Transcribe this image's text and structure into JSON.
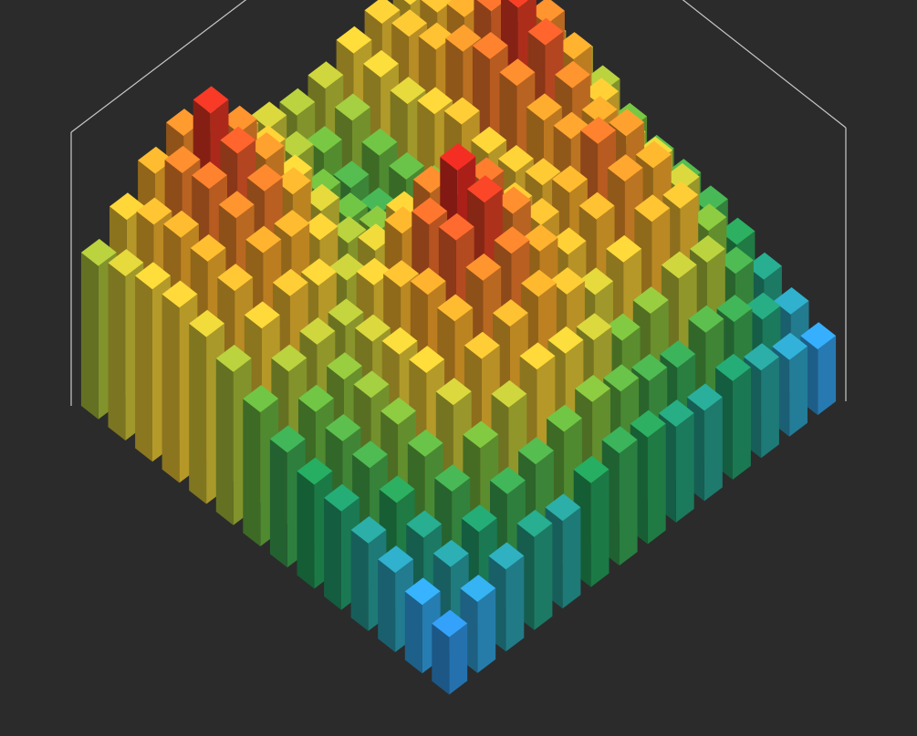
{
  "chart_data": {
    "type": "bar3d",
    "zlim": [
      0,
      10
    ],
    "colormap": [
      "#2b2f9e",
      "#2a6fd6",
      "#31a0e4",
      "#1f9a5a",
      "#6bb33c",
      "#e6c735",
      "#f2a52a",
      "#e8622a",
      "#d81e1e"
    ],
    "values": [
      [
        2.1,
        2.6,
        3.0,
        3.4,
        3.2,
        3.8,
        4.1,
        3.9,
        3.5,
        3.3,
        3.6,
        3.2,
        2.8,
        2.4
      ],
      [
        2.5,
        3.1,
        3.6,
        4.2,
        4.5,
        4.9,
        5.2,
        4.8,
        4.4,
        4.1,
        4.6,
        4.2,
        3.5,
        2.9
      ],
      [
        2.9,
        3.4,
        4.3,
        5.1,
        5.8,
        6.4,
        6.2,
        5.9,
        5.1,
        5.3,
        5.8,
        5.6,
        4.4,
        3.4
      ],
      [
        3.2,
        3.9,
        4.8,
        5.9,
        6.8,
        7.2,
        7.5,
        6.8,
        6.0,
        6.4,
        7.1,
        6.8,
        5.2,
        3.9
      ],
      [
        3.6,
        4.4,
        5.2,
        6.3,
        7.4,
        8.1,
        8.3,
        7.6,
        6.7,
        7.2,
        7.8,
        7.5,
        5.9,
        4.3
      ],
      [
        3.8,
        4.6,
        5.4,
        6.2,
        7.6,
        8.8,
        9.4,
        8.2,
        7.0,
        7.4,
        8.4,
        7.9,
        6.1,
        4.5
      ],
      [
        4.2,
        4.9,
        5.3,
        5.9,
        7.1,
        8.6,
        9.8,
        8.5,
        6.8,
        6.9,
        7.8,
        7.6,
        6.0,
        4.6
      ],
      [
        4.9,
        5.6,
        5.8,
        5.7,
        6.4,
        7.5,
        8.2,
        7.3,
        5.9,
        6.6,
        7.7,
        8.1,
        6.7,
        5.0
      ],
      [
        5.6,
        6.4,
        6.8,
        6.4,
        5.8,
        6.1,
        6.5,
        5.9,
        5.3,
        6.5,
        8.2,
        8.9,
        7.6,
        5.6
      ],
      [
        6.1,
        7.0,
        7.6,
        7.4,
        6.5,
        5.6,
        5.2,
        4.8,
        5.1,
        6.8,
        8.4,
        9.5,
        8.1,
        6.0
      ],
      [
        6.4,
        7.3,
        8.1,
        8.3,
        7.4,
        6.0,
        4.9,
        4.3,
        4.8,
        6.4,
        7.9,
        8.6,
        7.4,
        5.8
      ],
      [
        6.3,
        7.4,
        8.4,
        8.9,
        7.9,
        6.3,
        5.0,
        4.5,
        4.9,
        6.0,
        7.2,
        7.6,
        6.8,
        5.5
      ],
      [
        6.0,
        7.1,
        8.2,
        9.6,
        8.1,
        6.6,
        5.6,
        5.0,
        5.4,
        6.2,
        6.9,
        7.0,
        6.4,
        5.3
      ],
      [
        5.6,
        6.5,
        7.4,
        8.0,
        7.3,
        6.4,
        5.9,
        5.6,
        5.8,
        6.3,
        6.6,
        6.5,
        6.0,
        5.1
      ]
    ]
  }
}
